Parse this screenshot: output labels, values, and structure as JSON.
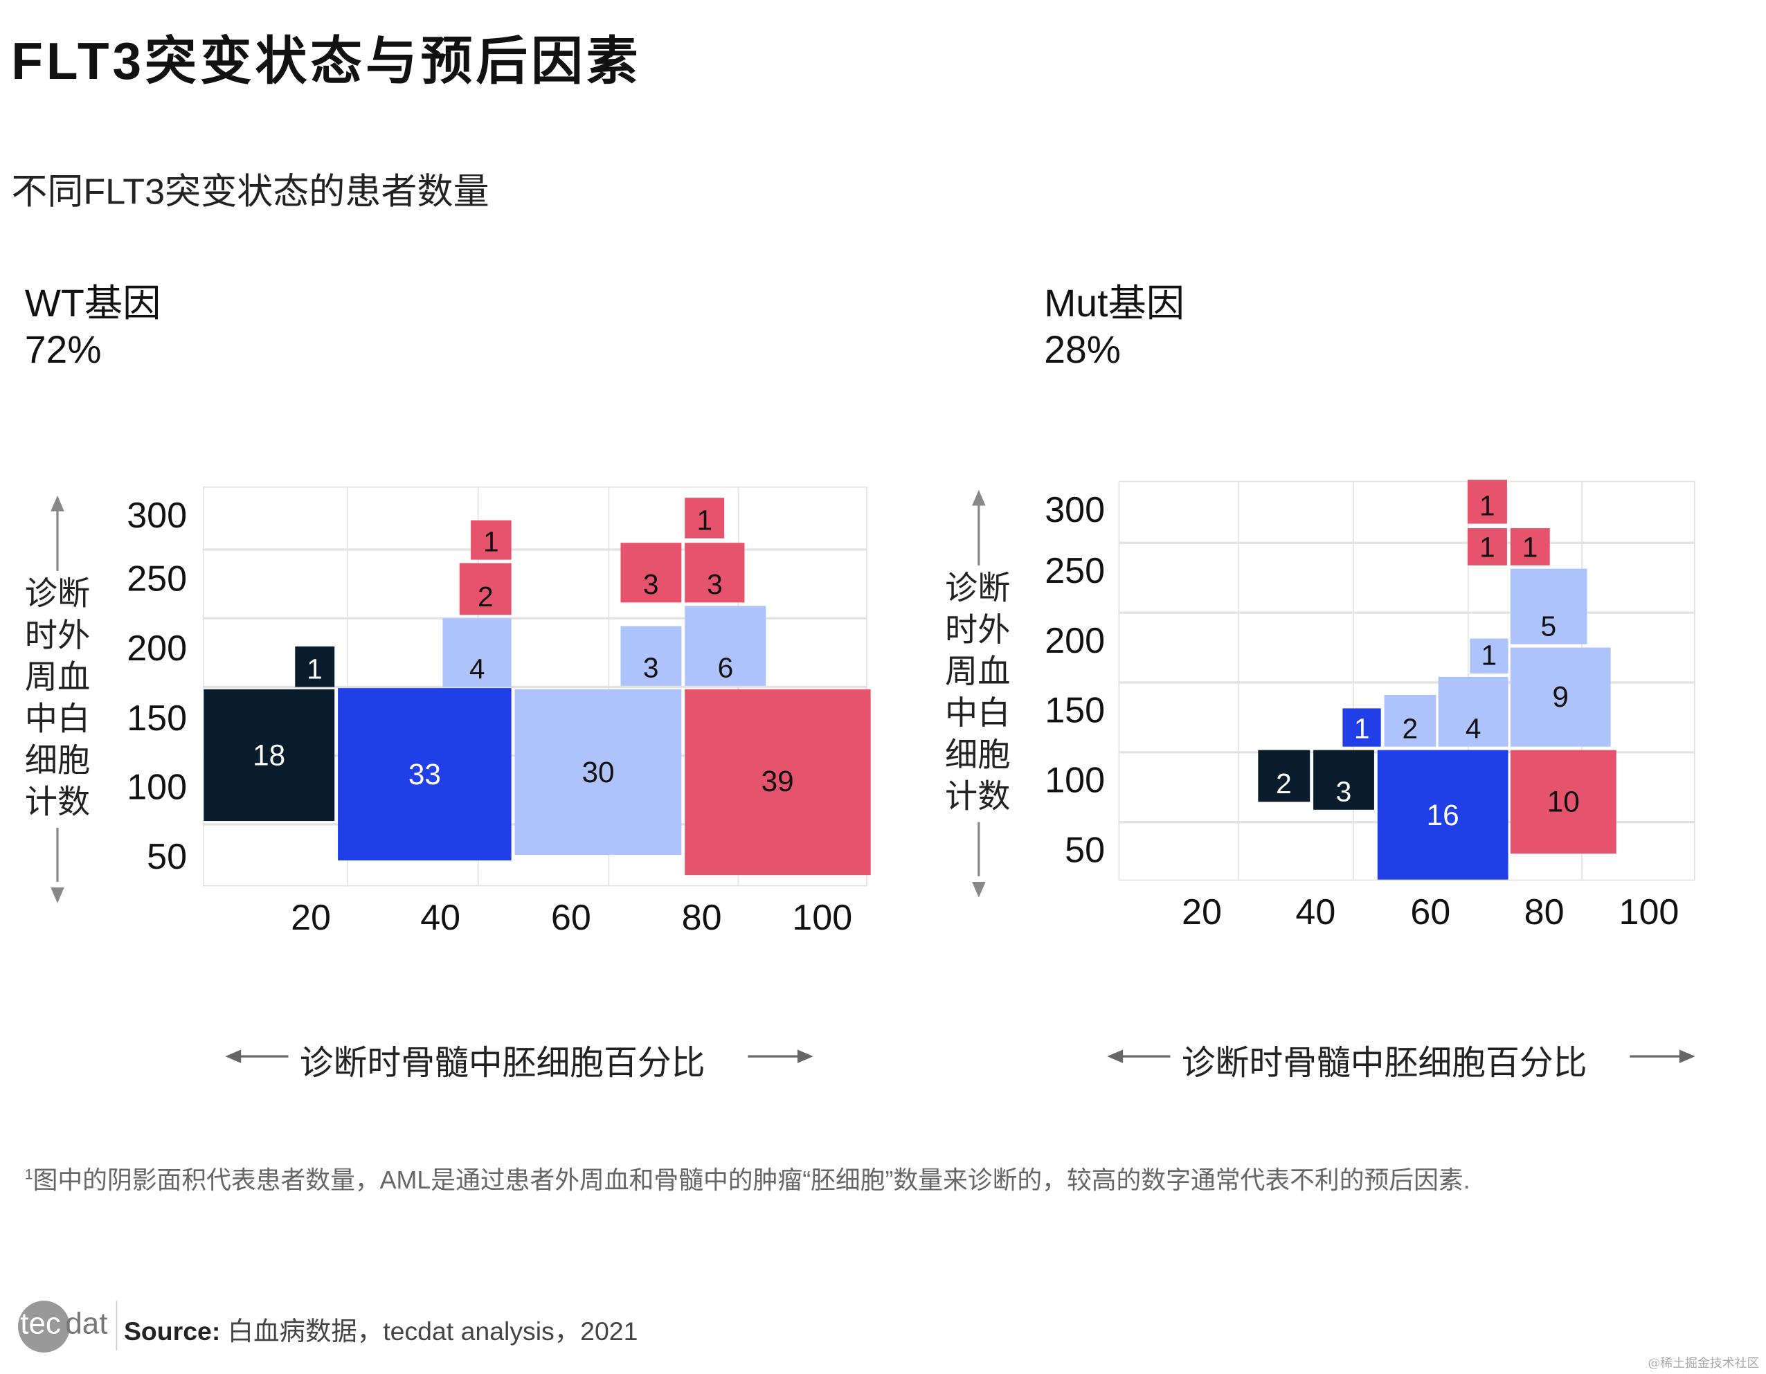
{
  "title": "FLT3突变状态与预后因素",
  "subtitle": "不同FLT3突变状态的患者数量",
  "panels": [
    {
      "name": "WT基因",
      "share": "72%"
    },
    {
      "name": "Mut基因",
      "share": "28%"
    }
  ],
  "colors": {
    "dark": "#081c2c",
    "blue": "#213fe6",
    "light": "#aec2fb",
    "red": "#e5536d"
  },
  "chart_data": [
    {
      "type": "mosaic",
      "title": "WT基因",
      "xlabel": "诊断时骨髓中胚细胞百分比",
      "ylabel": "诊断时外周血中白细胞计数",
      "x_ticks": [
        "20",
        "40",
        "60",
        "80",
        "100"
      ],
      "y_ticks": [
        "300",
        "250",
        "200",
        "150",
        "100",
        "50"
      ],
      "xlim": [
        3.5,
        105.5
      ],
      "ylim": [
        28,
        320
      ],
      "grid": true,
      "rects": [
        {
          "count": "18",
          "color": "dark",
          "x": [
            3.6,
            23.7
          ],
          "y": [
            76,
            172.5
          ]
        },
        {
          "count": "1",
          "color": "dark",
          "x": [
            17.6,
            23.7
          ],
          "y": [
            174,
            203.6
          ]
        },
        {
          "count": "33",
          "color": "blue",
          "x": [
            24.2,
            50.9
          ],
          "y": [
            47.5,
            173
          ]
        },
        {
          "count": "4",
          "color": "light",
          "x": [
            40.3,
            50.9
          ],
          "y": [
            174,
            224
          ]
        },
        {
          "count": "2",
          "color": "red",
          "x": [
            42.9,
            50.9
          ],
          "y": [
            226.6,
            264.4
          ]
        },
        {
          "count": "1",
          "color": "red",
          "x": [
            44.6,
            50.9
          ],
          "y": [
            266.6,
            295.4
          ]
        },
        {
          "count": "30",
          "color": "light",
          "x": [
            51.4,
            77
          ],
          "y": [
            51.5,
            172.5
          ]
        },
        {
          "count": "3",
          "color": "light",
          "x": [
            67.6,
            77
          ],
          "y": [
            175,
            218.6
          ]
        },
        {
          "count": "3",
          "color": "red",
          "x": [
            67.6,
            77
          ],
          "y": [
            235.6,
            279
          ]
        },
        {
          "count": "6",
          "color": "light",
          "x": [
            77.5,
            90
          ],
          "y": [
            175,
            233
          ]
        },
        {
          "count": "3",
          "color": "red",
          "x": [
            77.5,
            86.7
          ],
          "y": [
            235.6,
            279
          ]
        },
        {
          "count": "1",
          "color": "red",
          "x": [
            77.5,
            83.6
          ],
          "y": [
            282.6,
            312
          ]
        },
        {
          "count": "39",
          "color": "red",
          "x": [
            77.5,
            106
          ],
          "y": [
            37,
            172.5
          ]
        }
      ]
    },
    {
      "type": "mosaic",
      "title": "Mut基因",
      "xlabel": "诊断时骨髓中胚细胞百分比",
      "ylabel": "诊断时外周血中白细胞计数",
      "x_ticks": [
        "20",
        "40",
        "60",
        "80",
        "100"
      ],
      "y_ticks": [
        "300",
        "250",
        "200",
        "150",
        "100",
        "50"
      ],
      "xlim": [
        5.3,
        106.5
      ],
      "ylim": [
        28,
        314.5
      ],
      "grid": true,
      "rects": [
        {
          "count": "2",
          "color": "dark",
          "x": [
            29.8,
            38.9
          ],
          "y": [
            84.7,
            121.8
          ]
        },
        {
          "count": "3",
          "color": "dark",
          "x": [
            39.5,
            50.2
          ],
          "y": [
            79,
            121.8
          ]
        },
        {
          "count": "16",
          "color": "blue",
          "x": [
            50.8,
            73.7
          ],
          "y": [
            29,
            121.8
          ]
        },
        {
          "count": "1",
          "color": "blue",
          "x": [
            44.7,
            51.4
          ],
          "y": [
            124,
            151.6
          ]
        },
        {
          "count": "2",
          "color": "light",
          "x": [
            52,
            61
          ],
          "y": [
            124,
            161
          ]
        },
        {
          "count": "4",
          "color": "light",
          "x": [
            61.5,
            73.7
          ],
          "y": [
            124,
            174
          ]
        },
        {
          "count": "1",
          "color": "light",
          "x": [
            67,
            73.7
          ],
          "y": [
            176.6,
            202
          ]
        },
        {
          "count": "1",
          "color": "red",
          "x": [
            66.6,
            73.5
          ],
          "y": [
            284,
            315
          ]
        },
        {
          "count": "1",
          "color": "red",
          "x": [
            66.6,
            73.5
          ],
          "y": [
            254,
            281
          ]
        },
        {
          "count": "1",
          "color": "red",
          "x": [
            74.1,
            81
          ],
          "y": [
            254,
            281
          ]
        },
        {
          "count": "5",
          "color": "light",
          "x": [
            74.1,
            87.5
          ],
          "y": [
            197.6,
            251.6
          ]
        },
        {
          "count": "9",
          "color": "light",
          "x": [
            74.1,
            91.7
          ],
          "y": [
            124,
            195
          ]
        },
        {
          "count": "10",
          "color": "red",
          "x": [
            74.1,
            92.7
          ],
          "y": [
            47.6,
            121.8
          ]
        }
      ]
    }
  ],
  "footnote": {
    "marker": "1",
    "text": "图中的阴影面积代表患者数量，AML是通过患者外周血和骨髓中的肿瘤“胚细胞”数量来诊断的，较高的数字通常代表不利的预后因素."
  },
  "footer": {
    "logo_left": "tec",
    "logo_right": "dat",
    "source_label": "Source:",
    "source_text": " 白血病数据，tecdat analysis，2021",
    "watermark": "@稀土掘金技术社区"
  }
}
